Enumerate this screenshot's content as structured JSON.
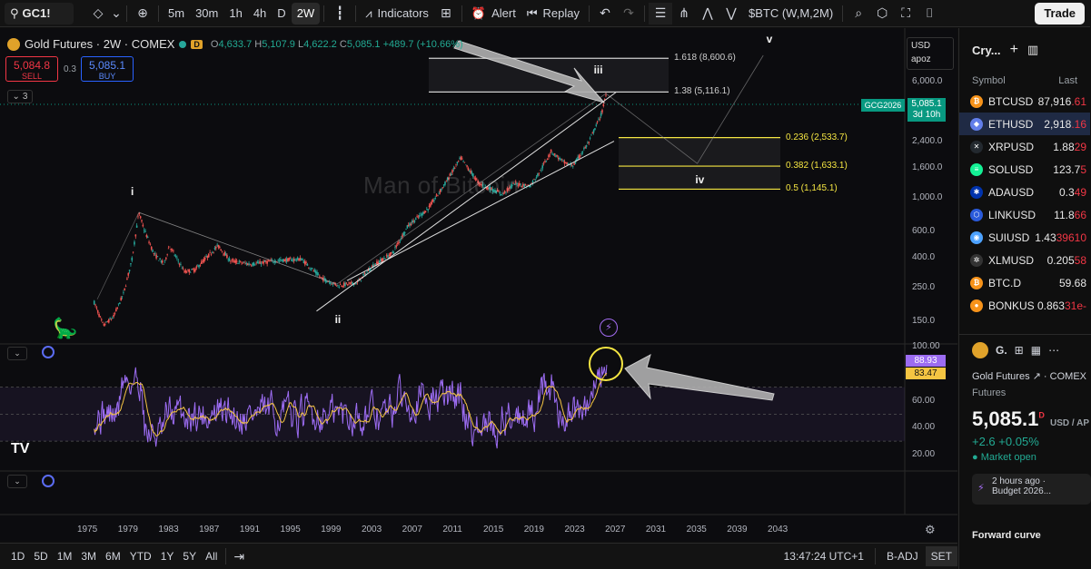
{
  "toolbar": {
    "symbol": "GC1!",
    "intervals": [
      "5m",
      "30m",
      "1h",
      "4h",
      "D",
      "2W"
    ],
    "active_interval": "2W",
    "indicators_label": "Indicators",
    "alert_label": "Alert",
    "replay_label": "Replay",
    "compare_label": "$BTC (W,M,2M)",
    "trade_label": "Trade"
  },
  "legend": {
    "title": "Gold Futures · 2W · COMEX",
    "d_badge": "D",
    "o_label": "O",
    "o": "4,633.7",
    "h_label": "H",
    "h": "5,107.9",
    "l_label": "L",
    "l": "4,622.2",
    "c_label": "C",
    "c": "5,085.1",
    "change": "+489.7 (+10.66%)",
    "sell_price": "5,084.8",
    "sell_label": "SELL",
    "buy_price": "5,085.1",
    "buy_label": "BUY",
    "spread": "0.3",
    "collapse_count": "3"
  },
  "price_scale": {
    "currency": "USD",
    "mode": "apoz",
    "ticks": [
      {
        "label": "6,000.0",
        "value": 6000
      },
      {
        "label": "2,400.0",
        "value": 2400
      },
      {
        "label": "1,600.0",
        "value": 1600
      },
      {
        "label": "1,000.0",
        "value": 1000
      },
      {
        "label": "600.0",
        "value": 600
      },
      {
        "label": "400.0",
        "value": 400
      },
      {
        "label": "250.0",
        "value": 250
      },
      {
        "label": "150.0",
        "value": 150
      }
    ],
    "last_price": "5,085.1",
    "countdown": "3d 10h",
    "contract": "GCG2026"
  },
  "fib_levels": [
    {
      "label": "1.618 (8,600.6)",
      "value": 8600.6,
      "color": "#cfcfcf"
    },
    {
      "label": "1.38 (5,116.1)",
      "value": 5116.1,
      "color": "#cfcfcf"
    },
    {
      "label": "0.236 (2,533.7)",
      "value": 2533.7,
      "color": "#f5e642"
    },
    {
      "label": "0.382 (1,633.1)",
      "value": 1633.1,
      "color": "#f5e642"
    },
    {
      "label": "0.5 (1,145.1)",
      "value": 1145.1,
      "color": "#f5e642"
    }
  ],
  "waves": {
    "i": "i",
    "ii": "ii",
    "iii": "iii",
    "iv": "iv",
    "v": "v"
  },
  "watermark": "Man of Bitcoin",
  "rsi": {
    "ticks": [
      {
        "label": "100.00",
        "value": 100
      },
      {
        "label": "60.00",
        "value": 60
      },
      {
        "label": "40.00",
        "value": 40
      },
      {
        "label": "20.00",
        "value": 20
      }
    ],
    "rsi_value": "88.93",
    "ma_value": "83.47",
    "rsi_color": "#9c6cf2",
    "ma_color": "#f5c542"
  },
  "time_axis": [
    "1975",
    "1979",
    "1983",
    "1987",
    "1991",
    "1995",
    "1999",
    "2003",
    "2007",
    "2011",
    "2015",
    "2019",
    "2023",
    "2027",
    "2031",
    "2035",
    "2039",
    "2043"
  ],
  "bottombar": {
    "ranges": [
      "1D",
      "5D",
      "1M",
      "3M",
      "6M",
      "YTD",
      "1Y",
      "5Y",
      "All"
    ],
    "clock": "13:47:24 UTC+1",
    "badj": "B-ADJ",
    "set": "SET"
  },
  "watchlist": {
    "title": "Cry...",
    "col_symbol": "Symbol",
    "col_last": "Last",
    "rows": [
      {
        "symbol": "BTCUSD",
        "last_a": "87,916",
        "last_b": ".61",
        "dir": "r",
        "color": "#f7931a",
        "glyph": "₿"
      },
      {
        "symbol": "ETHUSD",
        "last_a": "2,918",
        "last_b": ".16",
        "dir": "r",
        "color": "#627eea",
        "glyph": "◆",
        "selected": true
      },
      {
        "symbol": "XRPUSD",
        "last_a": "1.88",
        "last_b": "29",
        "dir": "r",
        "color": "#23292f",
        "glyph": "✕"
      },
      {
        "symbol": "SOLUSD",
        "last_a": "123.7",
        "last_b": "5",
        "dir": "r",
        "color": "#14f195",
        "glyph": "≡"
      },
      {
        "symbol": "ADAUSD",
        "last_a": "0.3",
        "last_b": "49",
        "dir": "r",
        "color": "#0033ad",
        "glyph": "✱"
      },
      {
        "symbol": "LINKUSD",
        "last_a": "11.8",
        "last_b": "66",
        "dir": "r",
        "color": "#2a5ada",
        "glyph": "⬡"
      },
      {
        "symbol": "SUIUSD",
        "last_a": "1.43",
        "last_b": "39610",
        "dir": "r",
        "color": "#4da2ff",
        "glyph": "◉"
      },
      {
        "symbol": "XLMUSD",
        "last_a": "0.205",
        "last_b": "58",
        "dir": "r",
        "color": "#333333",
        "glyph": "✲"
      },
      {
        "symbol": "BTC.D",
        "last_a": "59.68",
        "last_b": "",
        "dir": "",
        "color": "#f7931a",
        "glyph": "₿"
      },
      {
        "symbol": "BONKUS",
        "last_a": "0.863",
        "last_b": "31e-",
        "dir": "r",
        "color": "#f7931a",
        "glyph": "●"
      }
    ]
  },
  "details": {
    "short": "G.",
    "name": "Gold Futures",
    "exchange": "COMEX",
    "type": "Futures",
    "price": "5,085.1",
    "session": "D",
    "unit": "USD / AP",
    "change": "+2.6",
    "change_pct": "+0.05%",
    "market": "Market open",
    "news_time": "2 hours ago ·",
    "news_title": "Budget 2026...",
    "forward_curve": "Forward curve"
  }
}
